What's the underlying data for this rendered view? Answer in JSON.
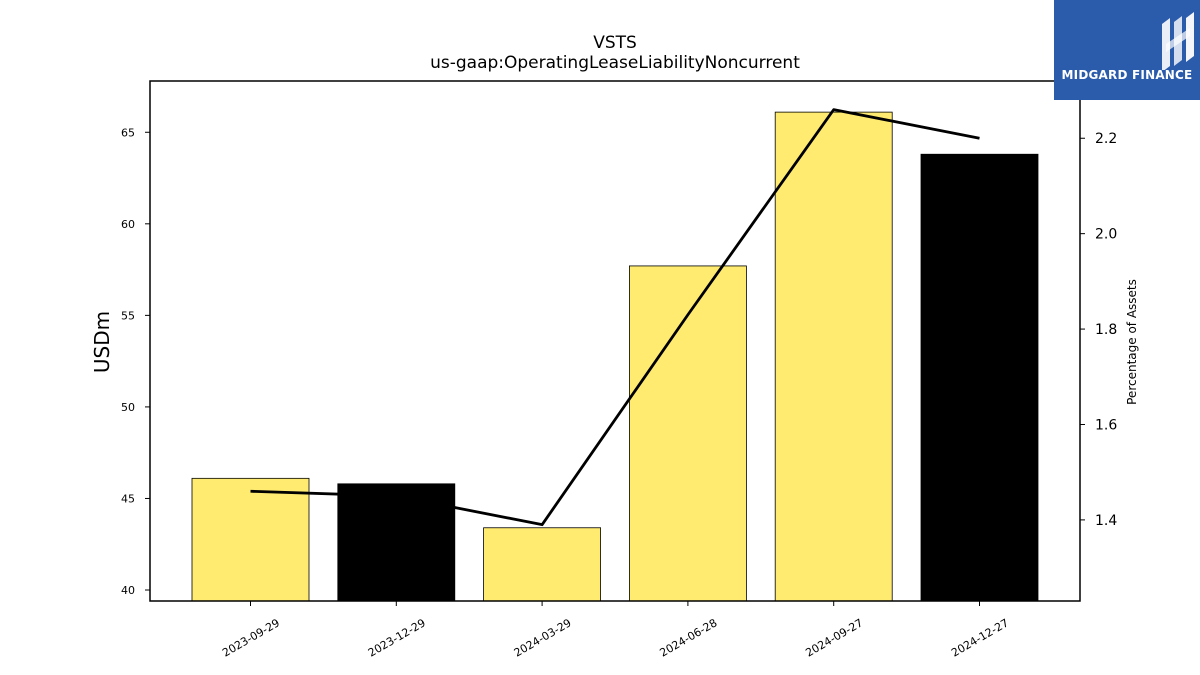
{
  "logo": {
    "text": "MIDGARD FINANCE",
    "bg_color": "#2b5bab"
  },
  "chart_data": {
    "type": "bar",
    "title": "VSTS",
    "subtitle": "us-gaap:OperatingLeaseLiabilityNoncurrent",
    "ylabel": "USDm",
    "y2label": "Percentage of Assets",
    "categories": [
      "2023-09-29",
      "2023-12-29",
      "2024-03-29",
      "2024-06-28",
      "2024-09-27",
      "2024-12-27"
    ],
    "values": [
      46.1,
      45.8,
      43.4,
      57.7,
      66.1,
      63.8
    ],
    "bar_colors": [
      "#ffeb70",
      "#000000",
      "#ffeb70",
      "#ffeb70",
      "#ffeb70",
      "#000000"
    ],
    "line": {
      "values": [
        1.46,
        1.45,
        1.39,
        1.83,
        2.26,
        2.2
      ],
      "color": "#000000"
    },
    "ylim": [
      39.4,
      67.8
    ],
    "yticks": [
      40,
      45,
      50,
      55,
      60,
      65
    ],
    "y2lim": [
      1.23,
      2.32
    ],
    "y2ticks": [
      1.4,
      1.6,
      1.8,
      2.0,
      2.2
    ],
    "y2ticklabels": [
      "1.4",
      "1.6",
      "1.8",
      "2.0",
      "2.2"
    ],
    "grid": false
  }
}
